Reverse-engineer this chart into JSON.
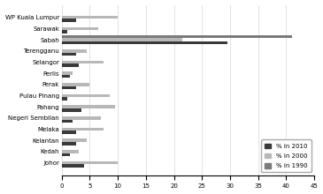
{
  "states": [
    "WP Kuala Lumpur",
    "Sarawak",
    "Sabah",
    "Terengganu",
    "Selangor",
    "Perlis",
    "Perak",
    "Pulau Pinang",
    "Pahang",
    "Negeri Sembilan",
    "Melaka",
    "Kelantan",
    "Kedah",
    "Johor"
  ],
  "pct_2010": [
    2.5,
    1.0,
    29.5,
    2.5,
    3.0,
    1.5,
    2.5,
    1.0,
    3.5,
    2.0,
    2.5,
    2.5,
    1.5,
    4.0
  ],
  "pct_2000": [
    10.0,
    6.5,
    21.5,
    4.5,
    7.5,
    2.0,
    5.0,
    8.5,
    9.5,
    7.0,
    7.5,
    4.5,
    3.0,
    10.0
  ],
  "pct_1990": [
    0,
    0,
    41.0,
    0,
    0,
    0,
    0,
    0,
    0,
    0,
    0,
    0,
    0,
    0
  ],
  "color_2010": "#3a3a3a",
  "color_2000": "#b8b8b8",
  "color_1990": "#7a7a7a",
  "legend_labels": [
    "% in 2010",
    "% in 2000",
    "% in 1990"
  ],
  "xlim": [
    0,
    45
  ],
  "xticks": [
    0,
    5,
    10,
    15,
    20,
    25,
    30,
    35,
    40,
    45
  ],
  "bar_height": 0.28,
  "figsize": [
    3.65,
    2.2
  ],
  "dpi": 100
}
